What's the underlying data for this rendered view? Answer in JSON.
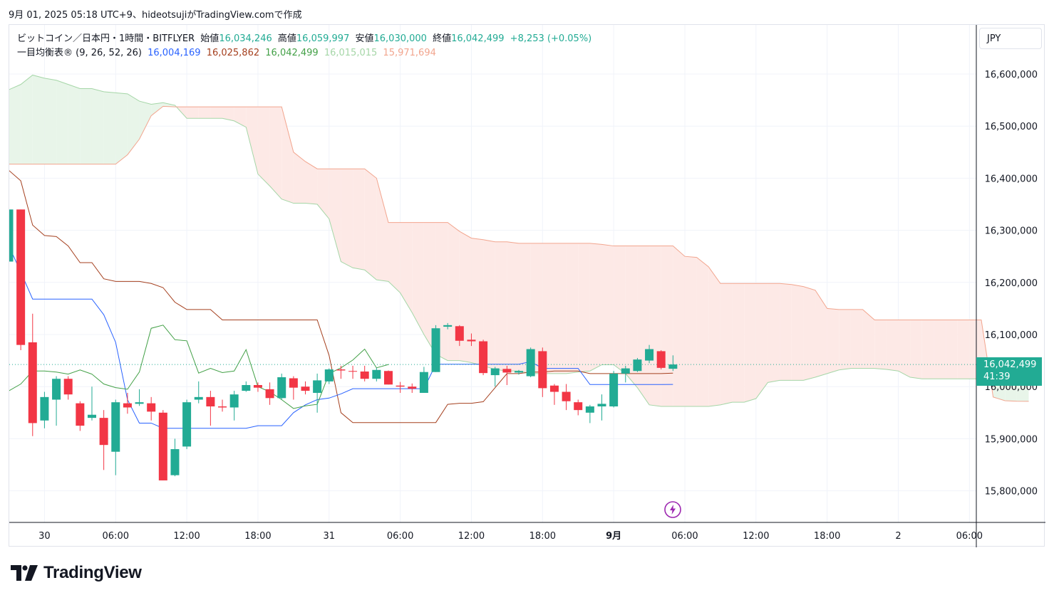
{
  "header": {
    "caption": "9月 01, 2025 05:18 UTC+9、hideotsujiがTradingView.comで作成"
  },
  "legend": {
    "symbol": "ビットコイン／日本円・1時間・BITFLYER",
    "open_label": "始値",
    "open": "16,034,246",
    "high_label": "高値",
    "high": "16,059,997",
    "low_label": "安値",
    "low": "16,030,000",
    "close_label": "終値",
    "close": "16,042,499",
    "change": "+8,253 (+0.05%)",
    "indicator": "一目均衡表® (9, 26, 52, 26)",
    "tenkan": "16,004,169",
    "kijun": "16,025,862",
    "chikou": "16,042,499",
    "span_a": "16,015,015",
    "span_b": "15,971,694"
  },
  "currency": "JPY",
  "price_tag": {
    "price": "16,042,499",
    "countdown": "41:39"
  },
  "brand": {
    "name": "TradingView"
  },
  "colors": {
    "up": "#22ab94",
    "down": "#f23645",
    "tenkan": "#2962ff",
    "kijun": "#a5401f",
    "chikou": "#43a047",
    "span_a": "#a5d6a7",
    "span_b": "#f2a58e",
    "cloud_bull": "#e8f5e9",
    "cloud_bear": "#fde9e6"
  },
  "chart_data": {
    "type": "candlestick",
    "title": "ビットコイン／日本円・1時間・BITFLYER",
    "ylim": [
      15740000,
      16700000
    ],
    "y_ticks": [
      15800000,
      15900000,
      16000000,
      16100000,
      16200000,
      16300000,
      16400000,
      16500000,
      16600000
    ],
    "y_tick_labels": [
      "15,800,000",
      "15,900,000",
      "16,000,000",
      "16,100,000",
      "16,200,000",
      "16,300,000",
      "16,400,000",
      "16,500,000",
      "16,600,000"
    ],
    "x_ticks": [
      {
        "i": 3,
        "label": "30"
      },
      {
        "i": 9,
        "label": "06:00"
      },
      {
        "i": 15,
        "label": "12:00"
      },
      {
        "i": 21,
        "label": "18:00"
      },
      {
        "i": 27,
        "label": "31"
      },
      {
        "i": 33,
        "label": "06:00"
      },
      {
        "i": 39,
        "label": "12:00"
      },
      {
        "i": 45,
        "label": "18:00"
      },
      {
        "i": 51,
        "label": "9月"
      },
      {
        "i": 57,
        "label": "06:00"
      },
      {
        "i": 63,
        "label": "12:00"
      },
      {
        "i": 69,
        "label": "18:00"
      },
      {
        "i": 75,
        "label": "2"
      },
      {
        "i": 81,
        "label": "06:00"
      }
    ],
    "candles": [
      {
        "o": 16240000,
        "h": 16350000,
        "l": 16230000,
        "c": 16340000
      },
      {
        "o": 16340000,
        "h": 16340000,
        "l": 16070000,
        "c": 16080000
      },
      {
        "o": 16085000,
        "h": 16140000,
        "l": 15905000,
        "c": 15930000
      },
      {
        "o": 15935000,
        "h": 15990000,
        "l": 15920000,
        "c": 15980000
      },
      {
        "o": 15975000,
        "h": 16020000,
        "l": 15925000,
        "c": 16015000
      },
      {
        "o": 16015000,
        "h": 16020000,
        "l": 15975000,
        "c": 15985000
      },
      {
        "o": 15968000,
        "h": 15972000,
        "l": 15915000,
        "c": 15925000
      },
      {
        "o": 15940000,
        "h": 16000000,
        "l": 15935000,
        "c": 15946000
      },
      {
        "o": 15940000,
        "h": 15955000,
        "l": 15840000,
        "c": 15888000
      },
      {
        "o": 15875000,
        "h": 15975000,
        "l": 15830000,
        "c": 15970000
      },
      {
        "o": 15968000,
        "h": 15988000,
        "l": 15948000,
        "c": 15960000
      },
      {
        "o": 15967000,
        "h": 15995000,
        "l": 15963000,
        "c": 15970000
      },
      {
        "o": 15968000,
        "h": 15980000,
        "l": 15935000,
        "c": 15952000
      },
      {
        "o": 15950000,
        "h": 15955000,
        "l": 15820000,
        "c": 15820000
      },
      {
        "o": 15830000,
        "h": 15900000,
        "l": 15828000,
        "c": 15880000
      },
      {
        "o": 15885000,
        "h": 15975000,
        "l": 15880000,
        "c": 15970000
      },
      {
        "o": 15975000,
        "h": 16010000,
        "l": 15968000,
        "c": 15980000
      },
      {
        "o": 15980000,
        "h": 15992000,
        "l": 15925000,
        "c": 15962000
      },
      {
        "o": 15962000,
        "h": 15975000,
        "l": 15952000,
        "c": 15960000
      },
      {
        "o": 15960000,
        "h": 15992000,
        "l": 15935000,
        "c": 15985000
      },
      {
        "o": 15992000,
        "h": 16010000,
        "l": 15990000,
        "c": 16003000
      },
      {
        "o": 16003000,
        "h": 16008000,
        "l": 15990000,
        "c": 15998000
      },
      {
        "o": 15995000,
        "h": 16008000,
        "l": 15965000,
        "c": 15978000
      },
      {
        "o": 15978000,
        "h": 16025000,
        "l": 15975000,
        "c": 16018000
      },
      {
        "o": 16016000,
        "h": 16020000,
        "l": 15975000,
        "c": 15998000
      },
      {
        "o": 16000000,
        "h": 16010000,
        "l": 15985000,
        "c": 15992000
      },
      {
        "o": 15988000,
        "h": 16025000,
        "l": 15950000,
        "c": 16012000
      },
      {
        "o": 16010000,
        "h": 16035000,
        "l": 16005000,
        "c": 16033000
      },
      {
        "o": 16033000,
        "h": 16040000,
        "l": 16015000,
        "c": 16031000
      },
      {
        "o": 16030000,
        "h": 16040000,
        "l": 16015000,
        "c": 16029000
      },
      {
        "o": 16029000,
        "h": 16040000,
        "l": 16010000,
        "c": 16015000
      },
      {
        "o": 16015000,
        "h": 16036000,
        "l": 16010000,
        "c": 16032000
      },
      {
        "o": 16030000,
        "h": 16031000,
        "l": 16004000,
        "c": 16004000
      },
      {
        "o": 16002000,
        "h": 16009000,
        "l": 15988000,
        "c": 16000000
      },
      {
        "o": 16000000,
        "h": 16006000,
        "l": 15988000,
        "c": 15996000
      },
      {
        "o": 15988000,
        "h": 16038000,
        "l": 15988000,
        "c": 16028000
      },
      {
        "o": 16028000,
        "h": 16118000,
        "l": 16028000,
        "c": 16112000
      },
      {
        "o": 16115000,
        "h": 16122000,
        "l": 16110000,
        "c": 16118000
      },
      {
        "o": 16116000,
        "h": 16118000,
        "l": 16078000,
        "c": 16088000
      },
      {
        "o": 16090000,
        "h": 16102000,
        "l": 16078000,
        "c": 16087000
      },
      {
        "o": 16087000,
        "h": 16090000,
        "l": 16022000,
        "c": 16026000
      },
      {
        "o": 16022000,
        "h": 16038000,
        "l": 16000000,
        "c": 16035000
      },
      {
        "o": 16034000,
        "h": 16040000,
        "l": 16003000,
        "c": 16027000
      },
      {
        "o": 16027000,
        "h": 16032000,
        "l": 16023000,
        "c": 16030000
      },
      {
        "o": 16020000,
        "h": 16075000,
        "l": 16018000,
        "c": 16072000
      },
      {
        "o": 16068000,
        "h": 16075000,
        "l": 15980000,
        "c": 15997000
      },
      {
        "o": 16002000,
        "h": 16005000,
        "l": 15965000,
        "c": 15990000
      },
      {
        "o": 15990000,
        "h": 16005000,
        "l": 15955000,
        "c": 15972000
      },
      {
        "o": 15970000,
        "h": 15975000,
        "l": 15945000,
        "c": 15955000
      },
      {
        "o": 15950000,
        "h": 15965000,
        "l": 15930000,
        "c": 15962000
      },
      {
        "o": 15962000,
        "h": 15985000,
        "l": 15935000,
        "c": 15967000
      },
      {
        "o": 15962000,
        "h": 16030000,
        "l": 15960000,
        "c": 16025000
      },
      {
        "o": 16025000,
        "h": 16040000,
        "l": 16008000,
        "c": 16035000
      },
      {
        "o": 16030000,
        "h": 16055000,
        "l": 16028000,
        "c": 16052000
      },
      {
        "o": 16050000,
        "h": 16080000,
        "l": 16045000,
        "c": 16072000
      },
      {
        "o": 16068000,
        "h": 16070000,
        "l": 16033000,
        "c": 16036000
      },
      {
        "o": 16034246,
        "h": 16059997,
        "l": 16030000,
        "c": 16042499
      }
    ],
    "tenkan_sen": [
      16270000,
      16220000,
      16168000,
      16168000,
      16168000,
      16168000,
      16168000,
      16168000,
      16138000,
      16085000,
      15975000,
      15930000,
      15930000,
      15920000,
      15920000,
      15920000,
      15920000,
      15920000,
      15920000,
      15920000,
      15920000,
      15925000,
      15925000,
      15925000,
      15950000,
      15965000,
      15975000,
      15978000,
      15986000,
      15996000,
      15996000,
      15996000,
      15996000,
      15996000,
      15996000,
      15996000,
      16043000,
      16043000,
      16043000,
      16043000,
      16043000,
      16043000,
      16043000,
      16043000,
      16048000,
      16035000,
      16035000,
      16035000,
      16035000,
      16004000,
      16004000,
      16004000,
      16004000,
      16004000,
      16004000,
      16004000,
      16004169
    ],
    "kijun_sen": [
      16415000,
      16395000,
      16310000,
      16290000,
      16288000,
      16270000,
      16238000,
      16238000,
      16207000,
      16202000,
      16202000,
      16202000,
      16198000,
      16190000,
      16162000,
      16148000,
      16148000,
      16148000,
      16128000,
      16128000,
      16128000,
      16128000,
      16128000,
      16128000,
      16128000,
      16128000,
      16128000,
      16060000,
      15950000,
      15931000,
      15931000,
      15931000,
      15931000,
      15931000,
      15931000,
      15931000,
      15931000,
      15966000,
      15968000,
      15968000,
      15971000,
      15998000,
      16025000,
      16025000,
      16028000,
      16028000,
      16030000,
      16030000,
      16030000,
      16025000,
      16025000,
      16025000,
      16025000,
      16025000,
      16025000,
      16025000,
      16025862
    ],
    "chikou_span": [
      15992000,
      16005000,
      16030000,
      16030000,
      16028000,
      16024000,
      16032000,
      16024000,
      16005000,
      15998000,
      15995000,
      16028000,
      16112000,
      16118000,
      16090000,
      16088000,
      16026000,
      16035000,
      16027000,
      16030000,
      16071000,
      16000000,
      15990000,
      15975000,
      15958000,
      15963000,
      15966000,
      16025000,
      16036000,
      16051000,
      16072000,
      16036000,
      16042499
    ],
    "span_a": [
      16570000,
      16580000,
      16598000,
      16592000,
      16588000,
      16580000,
      16572000,
      16572000,
      16566000,
      16564000,
      16562000,
      16548000,
      16542000,
      16545000,
      16540000,
      16515000,
      16515000,
      16515000,
      16515000,
      16510000,
      16498000,
      16408000,
      16385000,
      16360000,
      16352000,
      16352000,
      16350000,
      16322000,
      16240000,
      16228000,
      16224000,
      16205000,
      16202000,
      16180000,
      16142000,
      16100000,
      16062000,
      16050000,
      16050000,
      16046000,
      16040000,
      16033000,
      16030000,
      16030000,
      16025000,
      16025000,
      16025000,
      16025000,
      16028000,
      16030000,
      16042000,
      16042000,
      16025000,
      15998000,
      15965000,
      15962000,
      15962000,
      15962000,
      15962000,
      15962000,
      15965000,
      15970000,
      15970000,
      15977000,
      16008000,
      16012000,
      16012000,
      16012000,
      16018000,
      16025000,
      16032000,
      16035000,
      16035000,
      16035000,
      16033000,
      16030000,
      16018000,
      16015000,
      16015000,
      16015000,
      16015000,
      16015000,
      16015000,
      16015000,
      16015000,
      16015000,
      16015000,
      16015015
    ],
    "span_b": [
      16427000,
      16427000,
      16427000,
      16427000,
      16427000,
      16427000,
      16427000,
      16427000,
      16427000,
      16427000,
      16445000,
      16475000,
      16520000,
      16538000,
      16537000,
      16537000,
      16537000,
      16537000,
      16537000,
      16537000,
      16537000,
      16537000,
      16537000,
      16537000,
      16450000,
      16432000,
      16418000,
      16418000,
      16418000,
      16418000,
      16418000,
      16400000,
      16315000,
      16315000,
      16315000,
      16315000,
      16315000,
      16315000,
      16298000,
      16285000,
      16282000,
      16278000,
      16278000,
      16275000,
      16275000,
      16275000,
      16275000,
      16275000,
      16275000,
      16275000,
      16273000,
      16270000,
      16270000,
      16270000,
      16270000,
      16270000,
      16270000,
      16250000,
      16248000,
      16230000,
      16198000,
      16198000,
      16198000,
      16198000,
      16198000,
      16198000,
      16196000,
      16192000,
      16185000,
      16150000,
      16148000,
      16148000,
      16148000,
      16128000,
      16128000,
      16128000,
      16128000,
      16128000,
      16128000,
      16128000,
      16128000,
      16128000,
      16128000,
      15980000,
      15973000,
      15972000,
      15971694
    ]
  }
}
